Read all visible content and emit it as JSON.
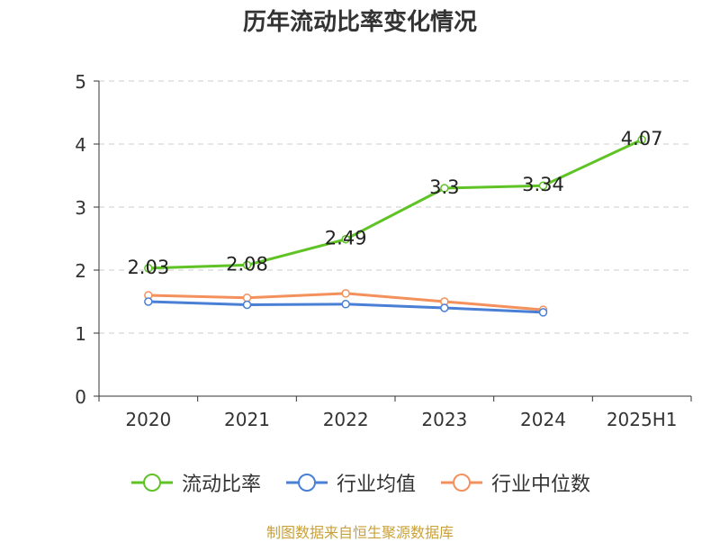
{
  "title": "历年流动比率变化情况",
  "source": "制图数据来自恒生聚源数据库",
  "colors": {
    "source_text": "#c9a13a",
    "grid": "#cccccc",
    "axis": "#333333"
  },
  "chart_data": {
    "type": "line",
    "title": "历年流动比率变化情况",
    "categories": [
      "2020",
      "2021",
      "2022",
      "2023",
      "2024",
      "2025H1"
    ],
    "ylim": [
      0,
      5
    ],
    "yticks": [
      0,
      1,
      2,
      3,
      4,
      5
    ],
    "grid": true,
    "legend_position": "bottom",
    "series": [
      {
        "name": "流动比率",
        "color": "#5fc325",
        "values": [
          2.03,
          2.08,
          2.49,
          3.3,
          3.34,
          4.07
        ],
        "labels": [
          "2.03",
          "2.08",
          "2.49",
          "3.3",
          "3.34",
          "4.07"
        ]
      },
      {
        "name": "行业均值",
        "color": "#4a7fd6",
        "values": [
          1.5,
          1.45,
          1.46,
          1.4,
          1.33,
          null
        ]
      },
      {
        "name": "行业中位数",
        "color": "#f4905c",
        "values": [
          1.6,
          1.56,
          1.63,
          1.5,
          1.37,
          null
        ]
      }
    ]
  }
}
